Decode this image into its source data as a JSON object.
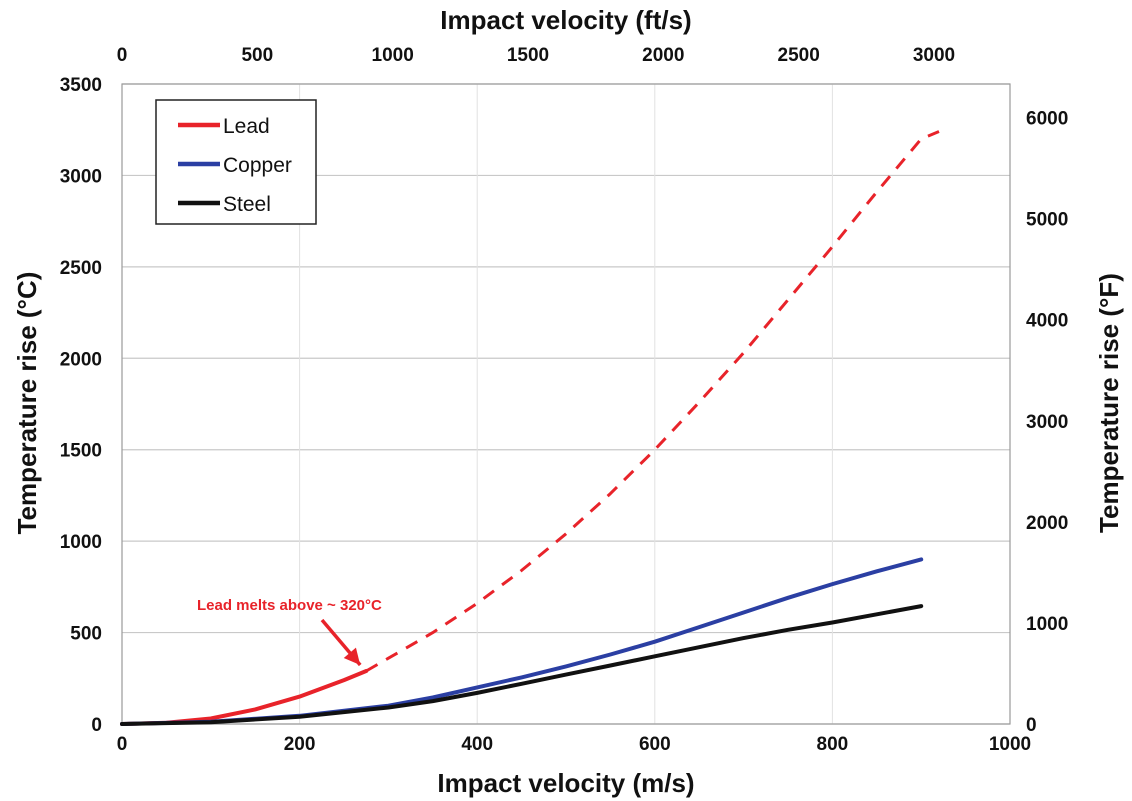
{
  "chart_data": {
    "type": "line",
    "x_label": "Impact velocity (m/s)",
    "x_top_label": "Impact velocity (ft/s)",
    "y_label": "Temperature rise (°C)",
    "y_right_label": "Temperature rise (°F)",
    "xlim": [
      0,
      1000
    ],
    "ylim": [
      0,
      3500
    ],
    "x_top_lim": [
      0,
      3280.84
    ],
    "y_right_lim": [
      0,
      6332
    ],
    "x_ticks": [
      "0",
      "200",
      "400",
      "600",
      "800",
      "1000"
    ],
    "x_top_ticks": [
      "0",
      "500",
      "1000",
      "1500",
      "2000",
      "2500",
      "3000"
    ],
    "y_ticks": [
      "0",
      "500",
      "1000",
      "1500",
      "2000",
      "2500",
      "3000",
      "3500"
    ],
    "y_right_ticks": [
      "0",
      "1000",
      "2000",
      "3000",
      "4000",
      "5000",
      "6000"
    ],
    "grid": true,
    "legend_position": "top-left",
    "series": [
      {
        "name": "Lead",
        "color": "#e8232a",
        "style": "solid",
        "x": [
          0,
          50,
          100,
          150,
          200,
          250,
          275
        ],
        "y": [
          0,
          7,
          30,
          80,
          150,
          240,
          290
        ]
      },
      {
        "name": "Lead",
        "color": "#e8232a",
        "style": "dashed",
        "legend": false,
        "x": [
          275,
          300,
          350,
          400,
          450,
          500,
          550,
          600,
          650,
          700,
          750,
          800,
          850,
          900,
          920
        ],
        "y": [
          290,
          360,
          500,
          660,
          840,
          1040,
          1260,
          1500,
          1760,
          2030,
          2320,
          2610,
          2910,
          3200,
          3240
        ]
      },
      {
        "name": "Copper",
        "color": "#2b3fa3",
        "style": "solid",
        "x": [
          0,
          100,
          200,
          300,
          350,
          400,
          450,
          500,
          550,
          600,
          650,
          700,
          750,
          800,
          850,
          900
        ],
        "y": [
          0,
          12,
          45,
          100,
          145,
          200,
          255,
          315,
          380,
          450,
          530,
          610,
          690,
          765,
          835,
          900
        ]
      },
      {
        "name": "Steel",
        "color": "#111111",
        "style": "solid",
        "x": [
          0,
          100,
          200,
          300,
          350,
          400,
          450,
          500,
          550,
          600,
          650,
          700,
          750,
          800,
          850,
          900
        ],
        "y": [
          0,
          10,
          40,
          90,
          125,
          170,
          220,
          270,
          320,
          370,
          420,
          470,
          515,
          555,
          600,
          645
        ]
      }
    ],
    "annotations": [
      {
        "text": "Lead melts above ~ 320°C",
        "color": "#e8232a",
        "arrow_to": [
          275,
          290
        ]
      }
    ]
  }
}
